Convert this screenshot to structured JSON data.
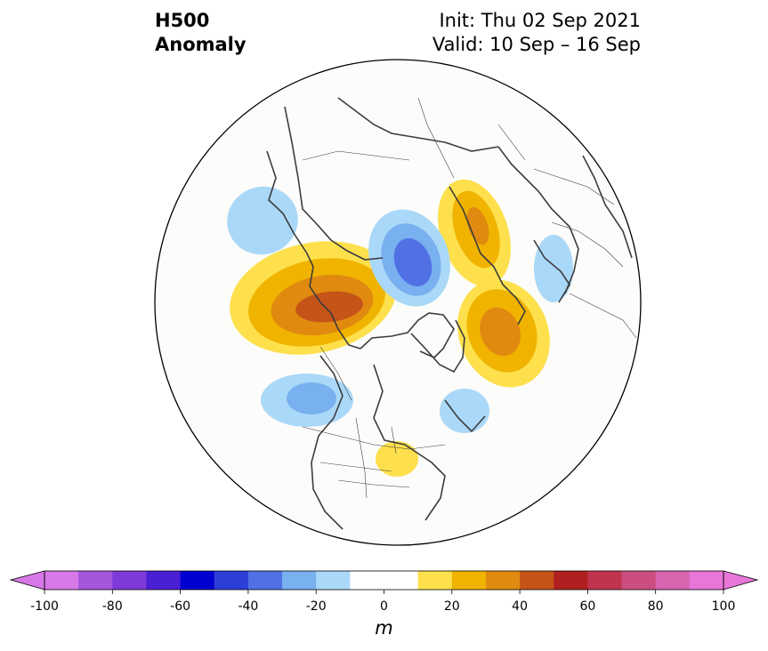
{
  "title": {
    "left_line1": "H500",
    "left_line2": "Anomaly",
    "right_line1": "Init: Thu 02 Sep 2021",
    "right_line2": "Valid: 10 Sep – 16 Sep"
  },
  "colorbar": {
    "units": "m",
    "min": -100,
    "max": 100,
    "levels": [
      -100,
      -90,
      -80,
      -70,
      -60,
      -50,
      -40,
      -30,
      -20,
      -10,
      10,
      20,
      30,
      40,
      50,
      60,
      70,
      80,
      90,
      100
    ],
    "tick_labels": [
      "-100",
      "-80",
      "-60",
      "-40",
      "-20",
      "0",
      "20",
      "40",
      "60",
      "80",
      "100"
    ],
    "colors": [
      "#d878e8",
      "#a456dc",
      "#7e3ad8",
      "#4a1ed2",
      "#0000d0",
      "#2e3fd8",
      "#5070e4",
      "#78b0f0",
      "#aad8f8",
      "#ffffff",
      "#ffffff",
      "#fde04c",
      "#f0b400",
      "#e08a10",
      "#c45418",
      "#b02020",
      "#c03450",
      "#cc4e80",
      "#d864b0",
      "#e876d8"
    ],
    "extend_low_color": "#d878e8",
    "extend_high_color": "#e876d8"
  },
  "anomalies": [
    {
      "name": "northeast-pacific-ridge",
      "sign": "positive",
      "peak": 50
    },
    {
      "name": "greenland-ridge",
      "sign": "positive",
      "peak": 40
    },
    {
      "name": "scandinavia-ridge",
      "sign": "positive",
      "peak": 30
    },
    {
      "name": "great-lakes-ridge",
      "sign": "positive",
      "peak": 20
    },
    {
      "name": "kara-sea-trough",
      "sign": "negative",
      "peak": -40
    },
    {
      "name": "east-siberia-trough",
      "sign": "negative",
      "peak": -20
    },
    {
      "name": "gulf-of-alaska-trough",
      "sign": "negative",
      "peak": -30
    },
    {
      "name": "labrador-trough",
      "sign": "negative",
      "peak": -20
    },
    {
      "name": "central-asia-trough",
      "sign": "negative",
      "peak": -20
    }
  ]
}
